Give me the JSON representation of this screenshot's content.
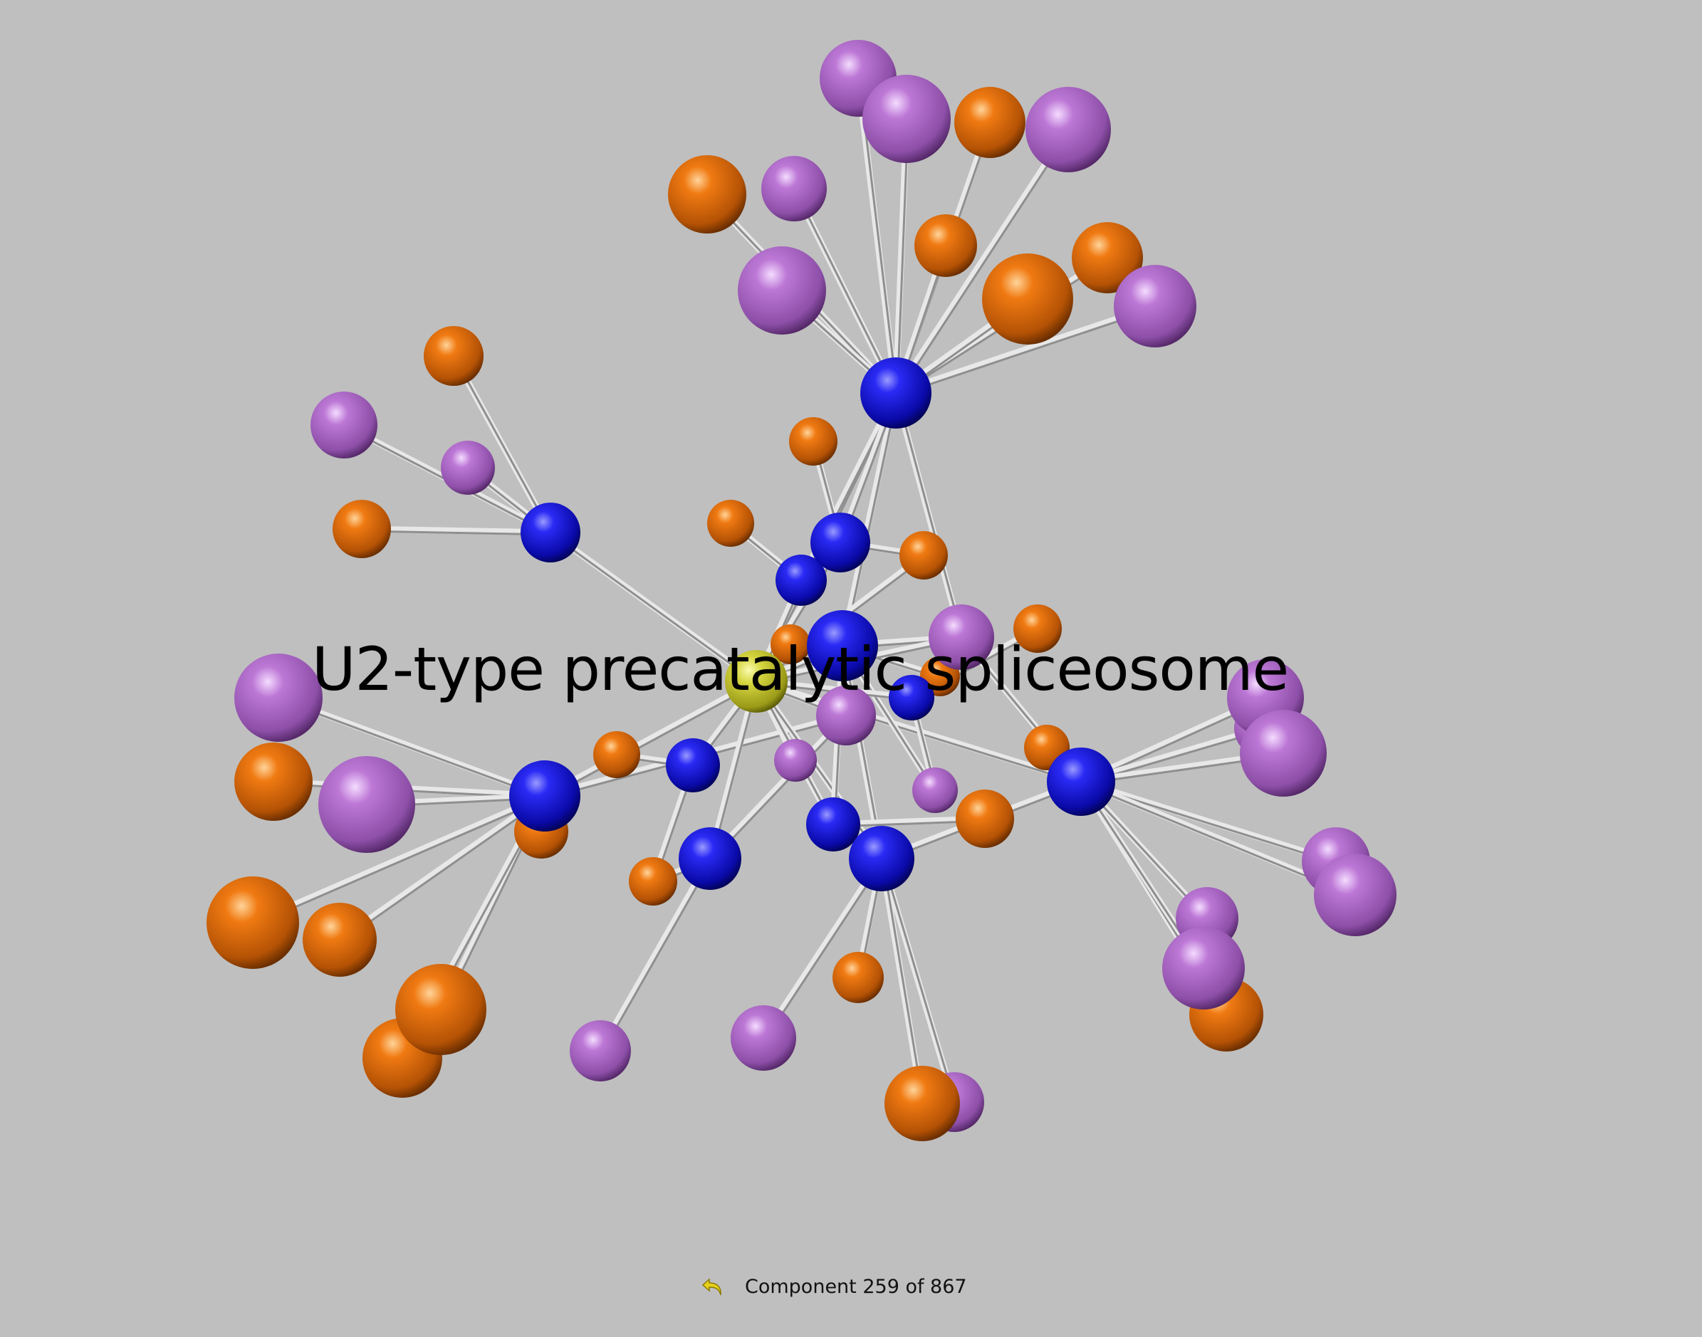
{
  "graph": {
    "focus_label": "U2-type precatalytic spliceosome",
    "node_colors": {
      "focus": "#c9c93a",
      "complex": "#1a1ae6",
      "protein_orange": "#e2700f",
      "protein_purple": "#b066cc"
    }
  },
  "status": {
    "back_icon": "undo-arrow-icon",
    "text": "Component 259 of 867"
  }
}
